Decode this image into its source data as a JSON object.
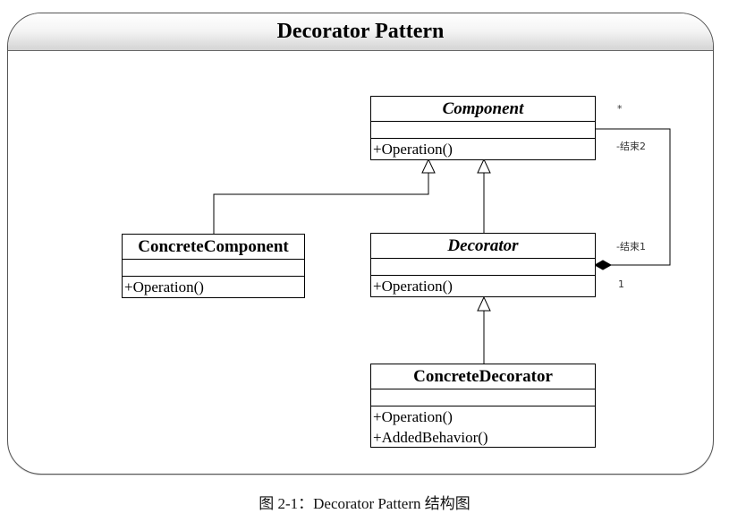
{
  "title": "Decorator Pattern",
  "classes": {
    "component": {
      "name": "Component",
      "operations": [
        "+Operation()"
      ]
    },
    "concrete_component": {
      "name": "ConcreteComponent",
      "operations": [
        "+Operation()"
      ]
    },
    "decorator": {
      "name": "Decorator",
      "operations": [
        "+Operation()"
      ]
    },
    "concrete_decorator": {
      "name": "ConcreteDecorator",
      "operations": [
        "+Operation()",
        "+AddedBehavior()"
      ]
    }
  },
  "association": {
    "component_multiplicity": "*",
    "component_role": "-结束2",
    "decorator_role": "-结束1",
    "decorator_multiplicity": "1"
  },
  "caption": "图 2-1：Decorator Pattern 结构图"
}
